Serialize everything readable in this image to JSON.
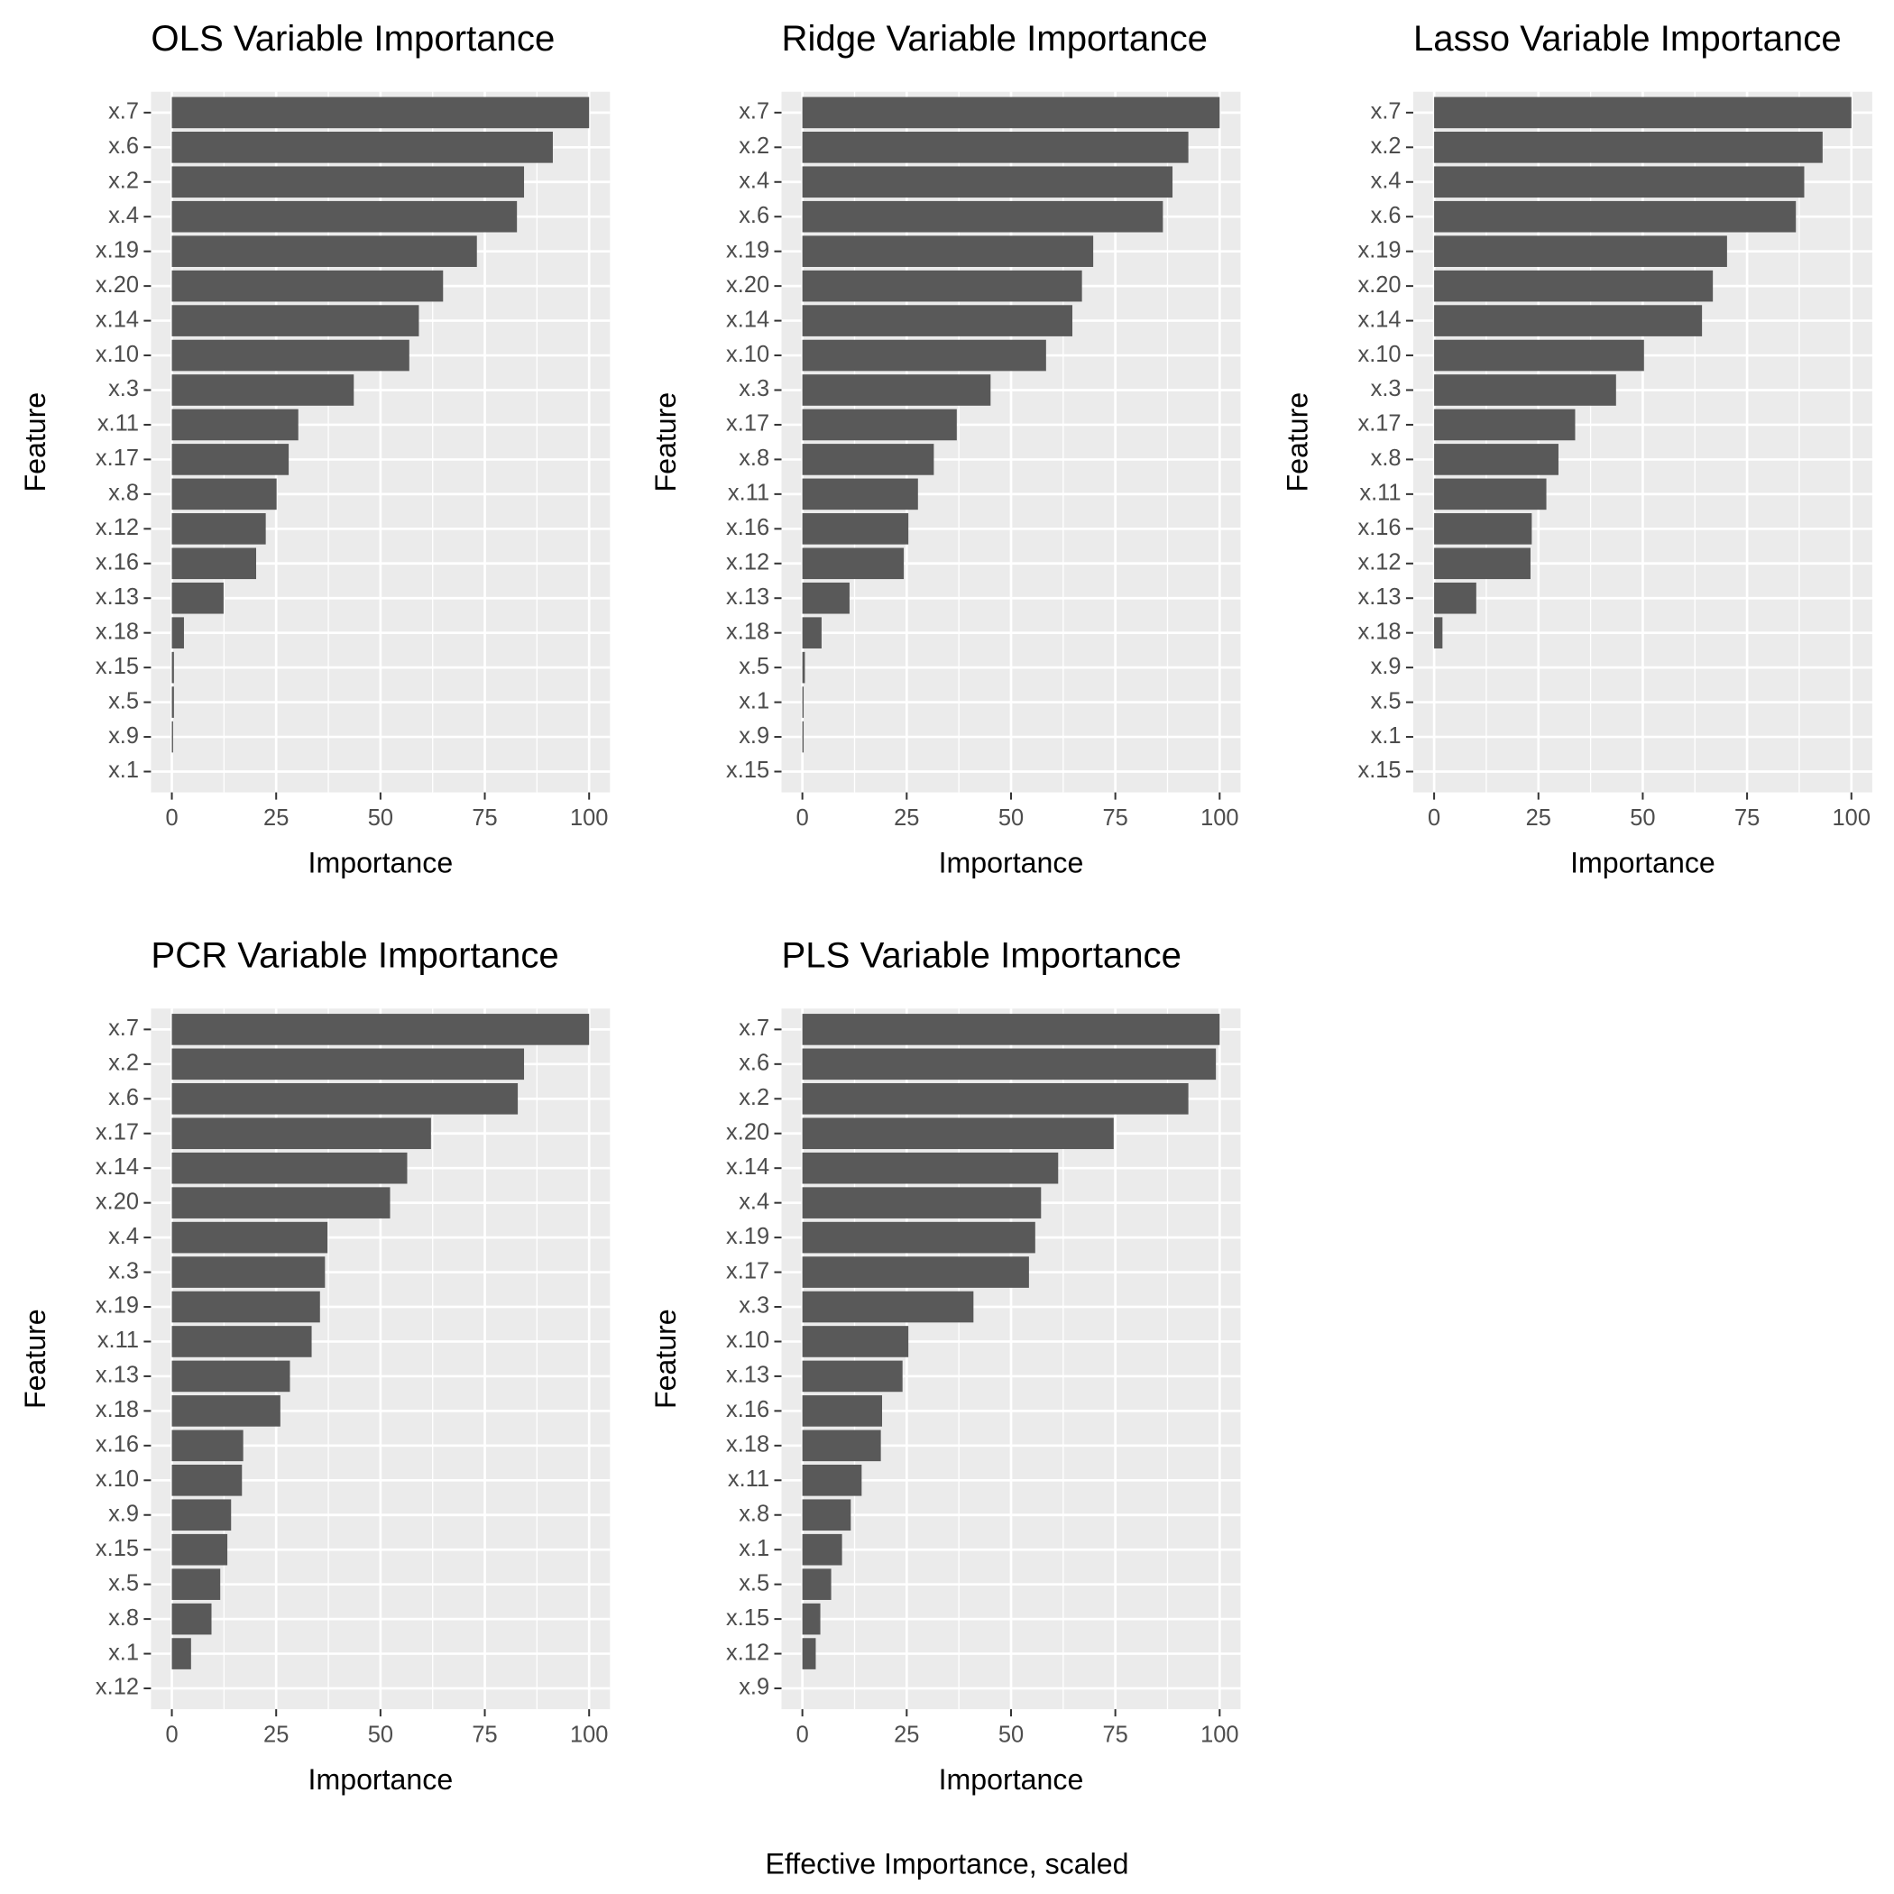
{
  "caption": "Effective Importance, scaled",
  "chart_data": [
    {
      "type": "bar",
      "orientation": "horizontal",
      "title": "OLS Variable Importance",
      "x_label": "Importance",
      "y_label": "Feature",
      "categories": [
        "x.7",
        "x.6",
        "x.2",
        "x.4",
        "x.19",
        "x.20",
        "x.14",
        "x.10",
        "x.3",
        "x.11",
        "x.17",
        "x.8",
        "x.12",
        "x.16",
        "x.13",
        "x.18",
        "x.15",
        "x.5",
        "x.9",
        "x.1"
      ],
      "values": [
        100,
        91.3,
        84.4,
        82.7,
        73.1,
        65,
        59.2,
        56.9,
        43.6,
        30.3,
        28,
        25.1,
        22.5,
        20.2,
        12.4,
        2.9,
        0.5,
        0.5,
        0.3,
        0
      ],
      "color": "#595959",
      "xlim": [
        -5,
        105
      ],
      "xticks": [
        0,
        25,
        50,
        75,
        100
      ],
      "grid": true
    },
    {
      "type": "bar",
      "orientation": "horizontal",
      "title": "Ridge Variable Importance",
      "x_label": "Importance",
      "y_label": "Feature",
      "categories": [
        "x.7",
        "x.2",
        "x.4",
        "x.6",
        "x.19",
        "x.20",
        "x.14",
        "x.10",
        "x.3",
        "x.17",
        "x.8",
        "x.11",
        "x.16",
        "x.12",
        "x.13",
        "x.18",
        "x.5",
        "x.1",
        "x.9",
        "x.15"
      ],
      "values": [
        100,
        92.5,
        88.7,
        86.4,
        69.7,
        67,
        64.7,
        58.4,
        45.1,
        37,
        31.5,
        27.7,
        25.4,
        24.3,
        11.3,
        4.6,
        0.6,
        0.3,
        0.3,
        0
      ],
      "color": "#595959",
      "xlim": [
        -5,
        105
      ],
      "xticks": [
        0,
        25,
        50,
        75,
        100
      ],
      "grid": true
    },
    {
      "type": "bar",
      "orientation": "horizontal",
      "title": "Lasso Variable Importance",
      "x_label": "Importance",
      "y_label": "Feature",
      "categories": [
        "x.7",
        "x.2",
        "x.4",
        "x.6",
        "x.19",
        "x.20",
        "x.14",
        "x.10",
        "x.3",
        "x.17",
        "x.8",
        "x.11",
        "x.16",
        "x.12",
        "x.13",
        "x.18",
        "x.9",
        "x.5",
        "x.1",
        "x.15"
      ],
      "values": [
        100,
        93.1,
        88.7,
        86.7,
        70.2,
        66.8,
        64.2,
        50.3,
        43.6,
        33.8,
        29.8,
        26.9,
        23.4,
        23.1,
        10.1,
        2,
        0,
        0,
        0,
        0
      ],
      "color": "#595959",
      "xlim": [
        -5,
        105
      ],
      "xticks": [
        0,
        25,
        50,
        75,
        100
      ],
      "grid": true
    },
    {
      "type": "bar",
      "orientation": "horizontal",
      "title": "PCR Variable Importance",
      "x_label": "Importance",
      "y_label": "Feature",
      "categories": [
        "x.7",
        "x.2",
        "x.6",
        "x.17",
        "x.14",
        "x.20",
        "x.4",
        "x.3",
        "x.19",
        "x.11",
        "x.13",
        "x.18",
        "x.16",
        "x.10",
        "x.9",
        "x.15",
        "x.5",
        "x.8",
        "x.1",
        "x.12"
      ],
      "values": [
        100,
        84.4,
        82.9,
        62.1,
        56.4,
        52.3,
        37.3,
        36.7,
        35.5,
        33.5,
        28.3,
        26,
        17.1,
        16.8,
        14.2,
        13.3,
        11.6,
        9.5,
        4.6,
        0
      ],
      "color": "#595959",
      "xlim": [
        -5,
        105
      ],
      "xticks": [
        0,
        25,
        50,
        75,
        100
      ],
      "grid": true
    },
    {
      "type": "bar",
      "orientation": "horizontal",
      "title": "PLS Variable Importance",
      "x_label": "Importance",
      "y_label": "Feature",
      "categories": [
        "x.7",
        "x.6",
        "x.2",
        "x.20",
        "x.14",
        "x.4",
        "x.19",
        "x.17",
        "x.3",
        "x.10",
        "x.13",
        "x.16",
        "x.18",
        "x.11",
        "x.8",
        "x.1",
        "x.5",
        "x.15",
        "x.12",
        "x.9"
      ],
      "values": [
        100,
        99.1,
        92.5,
        74.6,
        61.3,
        57.2,
        55.8,
        54.3,
        41,
        25.4,
        24,
        19.1,
        18.8,
        14.2,
        11.6,
        9.5,
        6.9,
        4.3,
        3.2,
        0
      ],
      "color": "#595959",
      "xlim": [
        -5,
        105
      ],
      "xticks": [
        0,
        25,
        50,
        75,
        100
      ],
      "grid": true
    }
  ]
}
